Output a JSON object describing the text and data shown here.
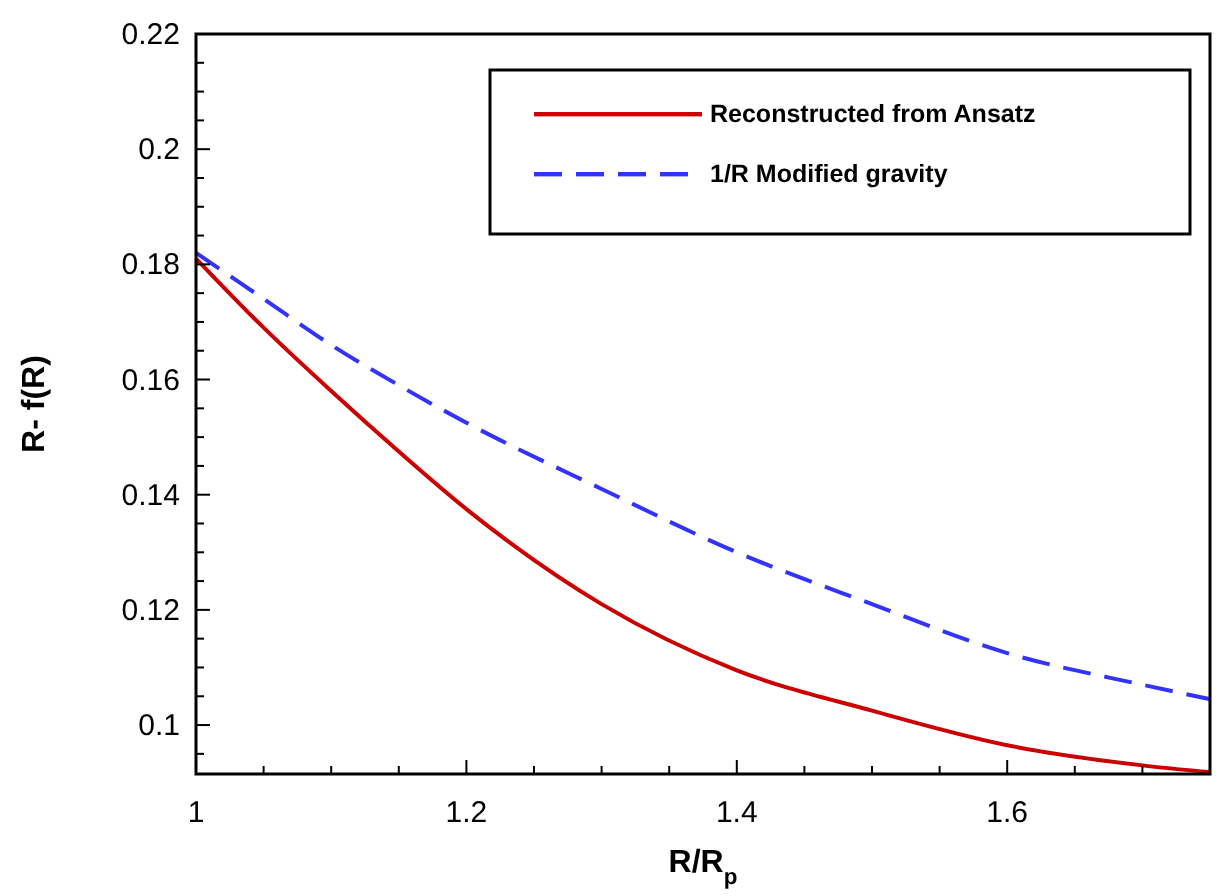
{
  "chart_data": {
    "type": "line",
    "xlabel": "R/R$_{p}$",
    "ylabel": "R- f(R)",
    "xlim": [
      1,
      1.75
    ],
    "xticks": [
      1,
      {
        "value": 1.05,
        "label": null
      },
      {
        "value": 1.1,
        "label": null
      },
      {
        "value": 1.15,
        "label": null
      },
      1.2,
      {
        "value": 1.25,
        "label": null
      },
      {
        "value": 1.3,
        "label": null
      },
      {
        "value": 1.35,
        "label": null
      },
      1.4,
      {
        "value": 1.45,
        "label": null
      },
      {
        "value": 1.5,
        "label": null
      },
      {
        "value": 1.55,
        "label": null
      },
      1.6,
      {
        "value": 1.65,
        "label": null
      },
      {
        "value": 1.7,
        "label": null
      }
    ],
    "ylim": [
      0.0915,
      0.22
    ],
    "yticks": [
      {
        "value": 0.095,
        "label": null
      },
      0.1,
      {
        "value": 0.105,
        "label": null
      },
      {
        "value": 0.11,
        "label": null
      },
      {
        "value": 0.115,
        "label": null
      },
      0.12,
      {
        "value": 0.125,
        "label": null
      },
      {
        "value": 0.13,
        "label": null
      },
      {
        "value": 0.135,
        "label": null
      },
      0.14,
      {
        "value": 0.145,
        "label": null
      },
      {
        "value": 0.15,
        "label": null
      },
      {
        "value": 0.155,
        "label": null
      },
      0.16,
      {
        "value": 0.165,
        "label": null
      },
      {
        "value": 0.17,
        "label": null
      },
      {
        "value": 0.175,
        "label": null
      },
      0.18,
      {
        "value": 0.185,
        "label": null
      },
      {
        "value": 0.19,
        "label": null
      },
      {
        "value": 0.195,
        "label": null
      },
      0.2,
      {
        "value": 0.205,
        "label": null
      },
      {
        "value": 0.21,
        "label": null
      },
      {
        "value": 0.215,
        "label": null
      },
      0.22
    ],
    "x": [
      1,
      1.05,
      1.1,
      1.15,
      1.2,
      1.3,
      1.4,
      1.5,
      1.6,
      1.7,
      1.75
    ],
    "series": [
      {
        "name": "Reconstructed from Ansatz",
        "color": "#cc0000",
        "line_style": "solid",
        "values": [
          0.181,
          0.169,
          0.158,
          0.1475,
          0.1375,
          0.121,
          0.1095,
          0.1025,
          0.0965,
          0.093,
          0.0918
        ]
      },
      {
        "name": "1/R Modified gravity",
        "color": "#3333ff",
        "line_style": "dashed",
        "values": [
          0.182,
          0.174,
          0.166,
          0.159,
          0.1525,
          0.141,
          0.13,
          0.121,
          0.1125,
          0.107,
          0.1045
        ]
      }
    ],
    "legend": "top right",
    "grid": false
  }
}
